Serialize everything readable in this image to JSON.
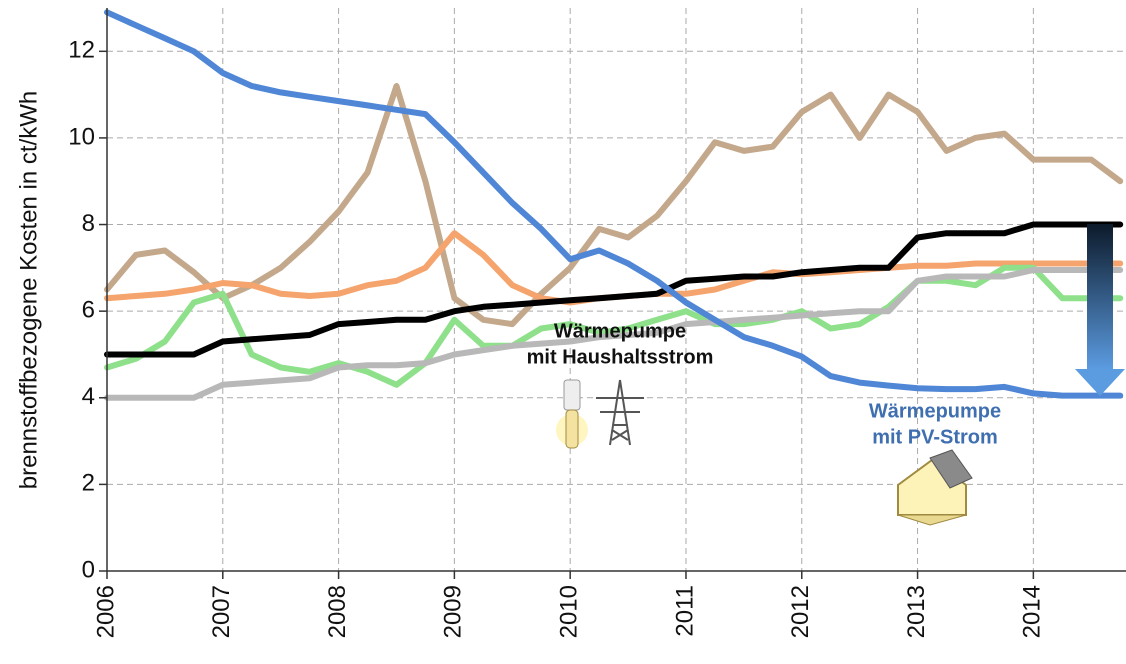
{
  "chart_data": {
    "type": "line",
    "y_label": "brennstoffbezogene Kosten in ct/kWh",
    "x": [
      2006,
      2006.25,
      2006.5,
      2006.75,
      2007,
      2007.25,
      2007.5,
      2007.75,
      2008,
      2008.25,
      2008.5,
      2008.75,
      2009,
      2009.25,
      2009.5,
      2009.75,
      2010,
      2010.25,
      2010.5,
      2010.75,
      2011,
      2011.25,
      2011.5,
      2011.75,
      2012,
      2012.25,
      2012.5,
      2012.75,
      2013,
      2013.25,
      2013.5,
      2013.75,
      2014,
      2014.25,
      2014.5,
      2014.75
    ],
    "series": [
      {
        "color": "#c4a88c",
        "values": [
          6.5,
          7.3,
          7.4,
          6.9,
          6.3,
          6.6,
          7.0,
          7.6,
          8.3,
          9.2,
          11.2,
          9.0,
          6.3,
          5.8,
          5.7,
          6.4,
          7.0,
          7.9,
          7.7,
          8.2,
          9.0,
          9.9,
          9.7,
          9.8,
          10.6,
          11.0,
          10.0,
          11.0,
          10.6,
          9.7,
          10.0,
          10.1,
          9.5,
          9.5,
          9.5,
          9.0
        ]
      },
      {
        "color": "#f4a46c",
        "values": [
          6.3,
          6.35,
          6.4,
          6.5,
          6.65,
          6.6,
          6.4,
          6.35,
          6.4,
          6.6,
          6.7,
          7.0,
          7.8,
          7.3,
          6.6,
          6.3,
          6.2,
          6.3,
          6.35,
          6.4,
          6.4,
          6.5,
          6.7,
          6.9,
          6.85,
          6.9,
          6.95,
          7.0,
          7.05,
          7.05,
          7.1,
          7.1,
          7.1,
          7.1,
          7.1,
          7.1
        ]
      },
      {
        "color": "#8ee08a",
        "values": [
          4.7,
          4.9,
          5.3,
          6.2,
          6.4,
          5.0,
          4.7,
          4.6,
          4.8,
          4.6,
          4.3,
          4.8,
          5.8,
          5.2,
          5.2,
          5.6,
          5.7,
          5.5,
          5.6,
          5.8,
          6.0,
          5.7,
          5.7,
          5.8,
          6.0,
          5.6,
          5.7,
          6.1,
          6.7,
          6.7,
          6.6,
          7.0,
          7.0,
          6.3,
          6.3,
          6.3
        ]
      },
      {
        "color": "#b8b8b8",
        "values": [
          4.0,
          4.0,
          4.0,
          4.0,
          4.3,
          4.35,
          4.4,
          4.45,
          4.7,
          4.75,
          4.75,
          4.8,
          5.0,
          5.1,
          5.2,
          5.25,
          5.3,
          5.4,
          5.45,
          5.5,
          5.7,
          5.75,
          5.8,
          5.85,
          5.9,
          5.95,
          6.0,
          6.0,
          6.7,
          6.8,
          6.8,
          6.8,
          6.95,
          6.95,
          6.95,
          6.95
        ]
      },
      {
        "color": "#000000",
        "values": [
          5.0,
          5.0,
          5.0,
          5.0,
          5.3,
          5.35,
          5.4,
          5.45,
          5.7,
          5.75,
          5.8,
          5.8,
          6.0,
          6.1,
          6.15,
          6.2,
          6.25,
          6.3,
          6.35,
          6.4,
          6.7,
          6.75,
          6.8,
          6.8,
          6.9,
          6.95,
          7.0,
          7.0,
          7.7,
          7.8,
          7.8,
          7.8,
          8.0,
          8.0,
          8.0,
          8.0
        ]
      },
      {
        "color": "#4f86d6",
        "values": [
          12.9,
          12.6,
          12.3,
          12.0,
          11.5,
          11.2,
          11.05,
          10.95,
          10.85,
          10.75,
          10.65,
          10.55,
          9.9,
          9.2,
          8.5,
          7.9,
          7.2,
          7.4,
          7.1,
          6.7,
          6.2,
          5.8,
          5.4,
          5.2,
          4.95,
          4.5,
          4.35,
          4.28,
          4.22,
          4.2,
          4.2,
          4.25,
          4.1,
          4.05,
          4.05,
          4.05
        ]
      }
    ],
    "annotations": [
      {
        "lines": [
          "Wärmepumpe",
          "mit Haushaltsstrom"
        ],
        "color": "#111111"
      },
      {
        "lines": [
          "Wärmepumpe",
          "mit PV-Strom"
        ],
        "color": "#3f6fb0"
      }
    ],
    "xlim": [
      2006,
      2014.8
    ],
    "ylim": [
      0,
      13
    ],
    "xticks": [
      2006,
      2007,
      2008,
      2009,
      2010,
      2011,
      2012,
      2013,
      2014
    ],
    "yticks": [
      0,
      2,
      4,
      6,
      8,
      10,
      12
    ],
    "grid": true
  }
}
